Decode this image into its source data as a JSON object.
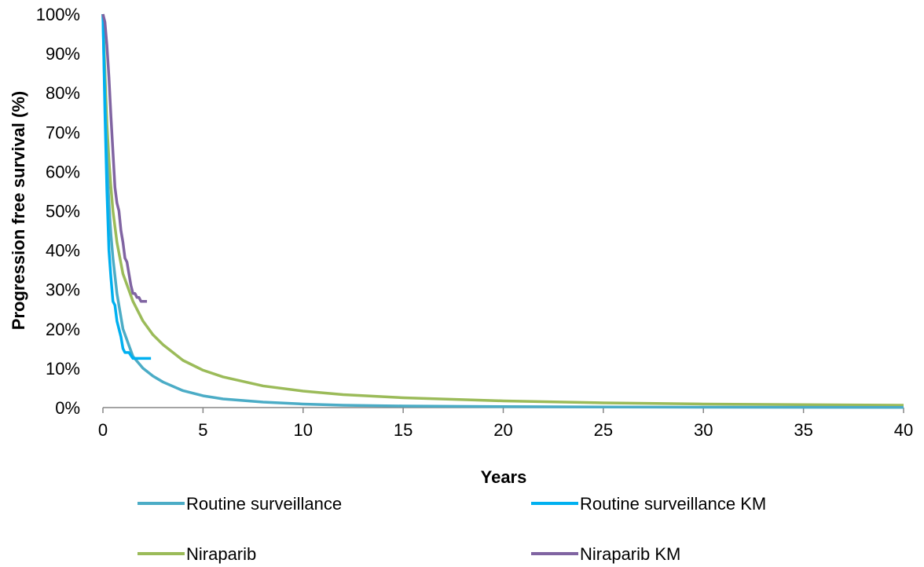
{
  "chart_data": {
    "type": "line",
    "xlabel": "Years",
    "ylabel": "Progression free survival (%)",
    "xlim": [
      0,
      40
    ],
    "ylim": [
      0,
      100
    ],
    "x_ticks": [
      0,
      5,
      10,
      15,
      20,
      25,
      30,
      35,
      40
    ],
    "x_tick_labels": [
      "0",
      "5",
      "10",
      "15",
      "20",
      "25",
      "30",
      "35",
      "40"
    ],
    "y_ticks": [
      0,
      10,
      20,
      30,
      40,
      50,
      60,
      70,
      80,
      90,
      100
    ],
    "y_tick_labels": [
      "0%",
      "10%",
      "20%",
      "30%",
      "40%",
      "50%",
      "60%",
      "70%",
      "80%",
      "90%",
      "100%"
    ],
    "grid": false,
    "legend_position": "bottom",
    "series": [
      {
        "name": "Routine surveillance",
        "color": "#4bacc6",
        "x": [
          0,
          0.1,
          0.2,
          0.3,
          0.4,
          0.5,
          0.7,
          1.0,
          1.5,
          2.0,
          2.5,
          3.0,
          4.0,
          5.0,
          6.0,
          8.0,
          10.0,
          12.0,
          15.0,
          20.0,
          25.0,
          30.0,
          40.0
        ],
        "y": [
          100,
          78,
          63,
          52,
          44,
          38,
          29,
          20,
          13,
          10,
          8,
          6.5,
          4.3,
          3.0,
          2.2,
          1.4,
          0.9,
          0.6,
          0.4,
          0.25,
          0.15,
          0.1,
          0.05
        ]
      },
      {
        "name": "Routine surveillance KM",
        "color": "#00b0f0",
        "x": [
          0,
          0.1,
          0.2,
          0.3,
          0.4,
          0.5,
          0.6,
          0.7,
          0.8,
          0.9,
          1.0,
          1.1,
          1.3,
          1.5,
          1.8,
          2.0,
          2.4
        ],
        "y": [
          100,
          75,
          55,
          40,
          33,
          27,
          26,
          22,
          20,
          18,
          15,
          14,
          14,
          12.5,
          12.5,
          12.5,
          12.5
        ]
      },
      {
        "name": "Niraparib",
        "color": "#9bbb59",
        "x": [
          0,
          0.1,
          0.2,
          0.3,
          0.4,
          0.5,
          0.7,
          1.0,
          1.5,
          2.0,
          2.5,
          3.0,
          4.0,
          5.0,
          6.0,
          8.0,
          10.0,
          12.0,
          15.0,
          20.0,
          25.0,
          30.0,
          40.0
        ],
        "y": [
          100,
          85,
          72,
          63,
          56,
          50,
          42,
          34,
          27,
          22,
          18.5,
          16,
          12,
          9.5,
          7.8,
          5.5,
          4.2,
          3.3,
          2.5,
          1.7,
          1.2,
          0.9,
          0.6
        ]
      },
      {
        "name": "Niraparib KM",
        "color": "#8064a2",
        "x": [
          0,
          0.1,
          0.2,
          0.3,
          0.4,
          0.5,
          0.6,
          0.7,
          0.8,
          0.9,
          1.0,
          1.1,
          1.2,
          1.3,
          1.4,
          1.5,
          1.6,
          1.7,
          1.8,
          1.9,
          2.0,
          2.1,
          2.2
        ],
        "y": [
          100,
          98,
          92,
          84,
          74,
          65,
          56,
          52,
          50,
          45,
          42,
          38,
          37,
          34,
          31,
          29,
          29,
          28,
          28,
          27,
          27,
          27,
          27
        ]
      }
    ]
  }
}
